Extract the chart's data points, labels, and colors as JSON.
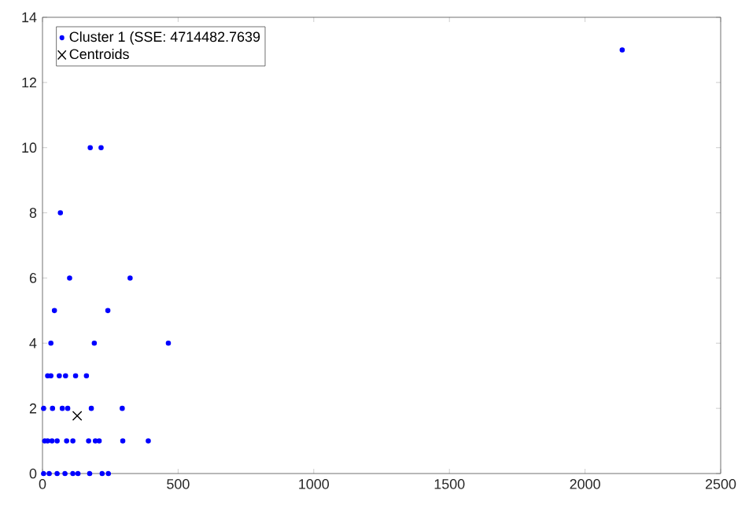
{
  "chart_data": {
    "type": "scatter",
    "series": [
      {
        "name": "Cluster 1 (SSE: 4714482.7639",
        "color": "#0000ff",
        "marker": "circle",
        "x": [
          2137,
          176,
          216,
          66,
          100,
          323,
          44,
          241,
          31,
          191,
          464,
          19,
          31,
          62,
          85,
          122,
          162,
          4,
          37,
          73,
          93,
          180,
          294,
          8,
          19,
          35,
          54,
          89,
          112,
          170,
          195,
          209,
          296,
          390,
          4,
          25,
          54,
          83,
          112,
          131,
          174,
          220,
          243
        ],
        "values": [
          13,
          10,
          10,
          8,
          6,
          6,
          5,
          5,
          4,
          4,
          4,
          3,
          3,
          3,
          3,
          3,
          3,
          2,
          2,
          2,
          2,
          2,
          2,
          1,
          1,
          1,
          1,
          1,
          1,
          1,
          1,
          1,
          1,
          1,
          0,
          0,
          0,
          0,
          0,
          0,
          0,
          0,
          0
        ]
      },
      {
        "name": "Centroids",
        "color": "#000000",
        "marker": "cross",
        "x": [
          128
        ],
        "values": [
          1.77
        ]
      }
    ],
    "xlim": [
      0,
      2500
    ],
    "xticks": [
      0,
      500,
      1000,
      1500,
      2000,
      2500
    ],
    "ylim": [
      0,
      14
    ],
    "yticks": [
      0,
      2,
      4,
      6,
      8,
      10,
      12,
      14
    ],
    "legend": "top left"
  }
}
